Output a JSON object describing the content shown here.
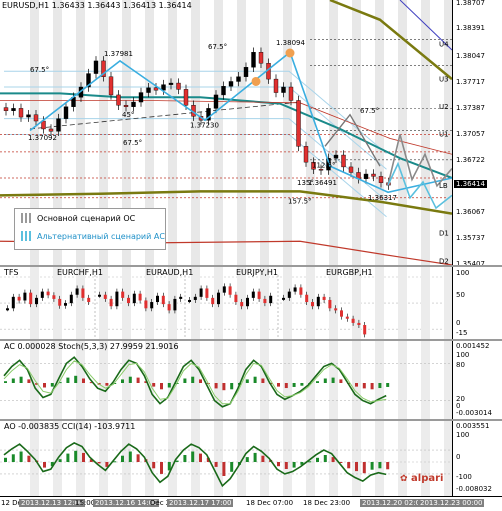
{
  "main": {
    "symbol": "EURUSD,H1",
    "ohlc": "1.36433 1.36443 1.36413 1.36414",
    "axis": [
      "1.38707",
      "1.38391",
      "1.38047",
      "1.37717",
      "1.37387",
      "1.37057",
      "1.36722",
      "1.36414",
      "1.36067",
      "1.35737",
      "1.35407"
    ],
    "current_price": "1.36414",
    "levels": [
      "U4",
      "U3",
      "U2",
      "U1",
      "LB",
      "D1",
      "D2"
    ],
    "annotations": [
      "1.37981",
      "1.38094",
      "1.37092",
      "1.37230",
      "1.36491",
      "1.36317",
      "67.5°",
      "67.5°",
      "67.5°",
      "67.5°",
      "45°",
      "112.5°",
      "135°",
      "157.5°"
    ],
    "legend": [
      {
        "label": "Основной сценарий ОС",
        "color": "#9a9a9a"
      },
      {
        "label": "Альтернативный сценарий АС",
        "color": "#5bc0de"
      }
    ]
  },
  "tfs": {
    "title": "TFS",
    "symbols": [
      "EURCHF,H1",
      "EURAUD,H1",
      "EURJPY,H1",
      "EURGBP,H1"
    ],
    "axis": [
      "100",
      "50",
      "0"
    ],
    "min": "-15"
  },
  "ac": {
    "title": "AC 0.000028",
    "stoch": "Stoch(5,3,3) 27.9959 21.9016",
    "axis": [
      "0.001452",
      "100",
      "80",
      "20",
      "0",
      "-0.003014"
    ]
  },
  "ao": {
    "title": "AO -0.003835",
    "cci": "CCI(14) -103.9711",
    "axis": [
      "0.003551",
      "100",
      "0",
      "-100",
      "-0.008032"
    ]
  },
  "brand": "alpari",
  "time_axis": [
    {
      "text": "12 Dec 2013",
      "hl": false
    },
    {
      "text": "2013.12.13 12:00",
      "hl": true
    },
    {
      "text": "15:00",
      "hl": false
    },
    {
      "text": "2013.12.16 14:00",
      "hl": true
    },
    {
      "text": "Dec 2013",
      "hl": false
    },
    {
      "text": "2013.12.17 17:00",
      "hl": true
    },
    {
      "text": "18 Dec 07:00",
      "hl": false
    },
    {
      "text": "18 Dec 23:00",
      "hl": false
    },
    {
      "text": "2013.12.20 02:00",
      "hl": true
    },
    {
      "text": "2013.12.23 00:00",
      "hl": true
    }
  ],
  "chart_data": [
    {
      "type": "candlestick",
      "title": "EURUSD,H1",
      "ylim": [
        1.354,
        1.3875
      ],
      "series": [
        {
          "name": "close",
          "values": [
            1.3735,
            1.3738,
            1.3727,
            1.373,
            1.3722,
            1.3712,
            1.3709,
            1.3725,
            1.374,
            1.3752,
            1.3765,
            1.3782,
            1.3798,
            1.3778,
            1.3755,
            1.3742,
            1.374,
            1.3746,
            1.3758,
            1.3764,
            1.3761,
            1.3768,
            1.377,
            1.3762,
            1.3742,
            1.3728,
            1.3723,
            1.3738,
            1.3755,
            1.3766,
            1.3772,
            1.3778,
            1.379,
            1.3809,
            1.3795,
            1.3775,
            1.3758,
            1.3765,
            1.3748,
            1.369,
            1.367,
            1.3661,
            1.366,
            1.3675,
            1.3679,
            1.3664,
            1.3657,
            1.3649,
            1.3655,
            1.3652,
            1.3644,
            1.3641
          ]
        }
      ]
    },
    {
      "type": "bar",
      "title": "TFS",
      "ylim": [
        -15,
        100
      ],
      "series": [
        {
          "name": "EURCHF",
          "values": [
            40,
            62,
            55,
            70,
            48,
            60,
            72,
            65,
            58,
            45,
            50,
            66,
            78,
            60,
            52
          ]
        },
        {
          "name": "EURAUD",
          "values": [
            66,
            58,
            44,
            72,
            60,
            50,
            68,
            55,
            40,
            52,
            64,
            48,
            36,
            58,
            62
          ]
        },
        {
          "name": "EURJPY",
          "values": [
            56,
            62,
            78,
            60,
            48,
            70,
            82,
            66,
            52,
            44,
            60,
            72,
            58,
            50,
            64
          ]
        },
        {
          "name": "EURGBP",
          "values": [
            60,
            72,
            80,
            66,
            52,
            44,
            62,
            56,
            40,
            36,
            24,
            20,
            12,
            8,
            -10
          ]
        }
      ]
    },
    {
      "type": "line",
      "title": "Stoch(5,3,3)",
      "ylim": [
        0,
        100
      ],
      "series": [
        {
          "name": "main",
          "values": [
            60,
            75,
            85,
            70,
            40,
            25,
            30,
            55,
            80,
            90,
            75,
            55,
            40,
            35,
            50,
            70,
            85,
            80,
            60,
            30,
            15,
            25,
            50,
            75,
            85,
            70,
            45,
            20,
            10,
            15,
            40,
            70,
            85,
            75,
            50,
            30,
            22,
            28,
            35,
            45,
            60,
            75,
            80,
            70,
            50,
            30,
            20,
            15,
            22,
            28
          ]
        },
        {
          "name": "signal",
          "values": [
            55,
            68,
            78,
            72,
            52,
            35,
            32,
            48,
            70,
            84,
            78,
            62,
            48,
            40,
            46,
            62,
            78,
            80,
            66,
            40,
            22,
            24,
            44,
            68,
            80,
            74,
            52,
            28,
            15,
            15,
            35,
            62,
            80,
            77,
            56,
            36,
            26,
            28,
            33,
            42,
            56,
            70,
            78,
            72,
            55,
            36,
            24,
            18,
            20,
            22
          ]
        }
      ]
    },
    {
      "type": "line",
      "title": "CCI(14)",
      "ylim": [
        -260,
        260
      ],
      "series": [
        {
          "name": "CCI",
          "values": [
            60,
            110,
            150,
            90,
            20,
            -80,
            -60,
            40,
            120,
            160,
            130,
            40,
            -20,
            -70,
            10,
            90,
            150,
            110,
            40,
            -90,
            -170,
            -120,
            20,
            100,
            150,
            120,
            60,
            -70,
            -200,
            -140,
            -40,
            70,
            130,
            90,
            30,
            -60,
            -100,
            -80,
            -40,
            10,
            60,
            100,
            70,
            -10,
            -90,
            -130,
            -160,
            -110,
            -90,
            -104
          ]
        }
      ]
    }
  ]
}
